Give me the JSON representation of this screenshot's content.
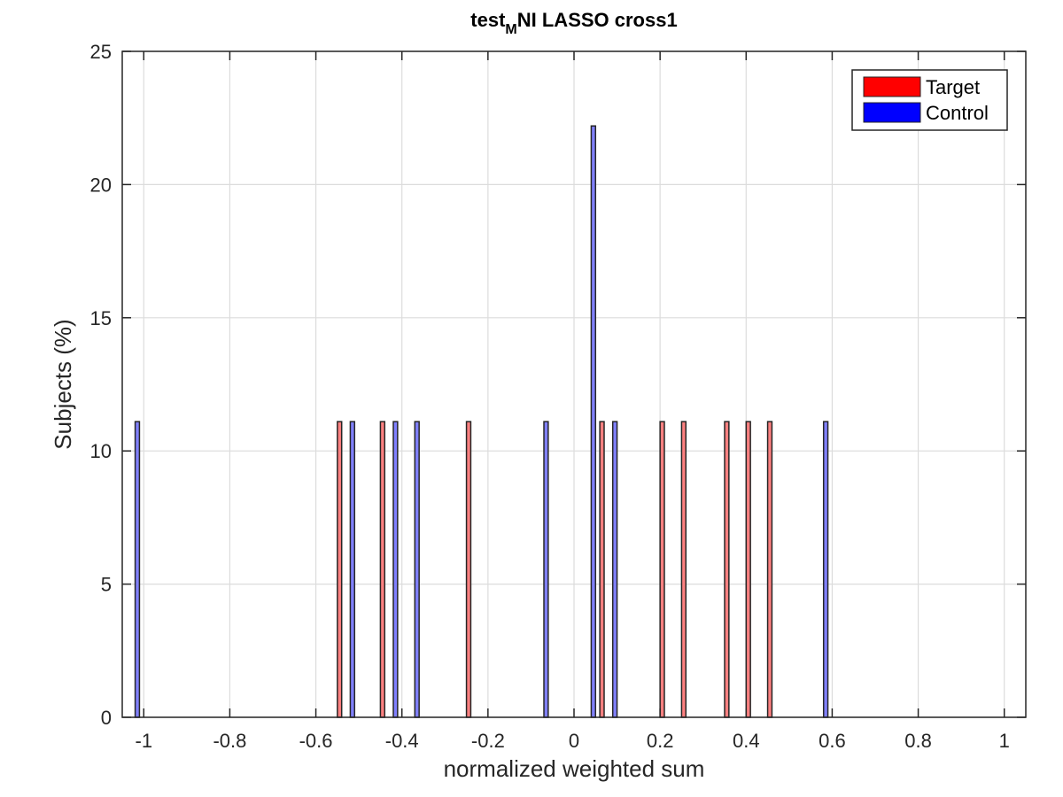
{
  "chart_data": {
    "type": "bar",
    "title": {
      "main": "test",
      "sub": "M",
      "rest": "NI LASSO cross1"
    },
    "xlabel": "normalized weighted sum",
    "ylabel": "Subjects (%)",
    "xlim": [
      -1.05,
      1.05
    ],
    "ylim": [
      0,
      25
    ],
    "xticks": [
      -1,
      -0.8,
      -0.6,
      -0.4,
      -0.2,
      0,
      0.2,
      0.4,
      0.6,
      0.8,
      1
    ],
    "xtick_labels": [
      "-1",
      "-0.8",
      "-0.6",
      "-0.4",
      "-0.2",
      "0",
      "0.2",
      "0.4",
      "0.6",
      "0.8",
      "1"
    ],
    "yticks": [
      0,
      5,
      10,
      15,
      20,
      25
    ],
    "ytick_labels": [
      "0",
      "5",
      "10",
      "15",
      "20",
      "25"
    ],
    "grid": true,
    "legend_position": "top-right",
    "series": [
      {
        "name": "Target",
        "legend_color": "#ff0000",
        "bar_color": "#ff8080",
        "x": [
          -0.545,
          -0.445,
          -0.245,
          0.065,
          0.205,
          0.255,
          0.355,
          0.405,
          0.455
        ],
        "values": [
          11.1,
          11.1,
          11.1,
          11.1,
          11.1,
          11.1,
          11.1,
          11.1,
          11.1
        ]
      },
      {
        "name": "Control",
        "legend_color": "#0000ff",
        "bar_color": "#8080ff",
        "x": [
          -1.015,
          -0.515,
          -0.415,
          -0.365,
          -0.065,
          0.045,
          0.095,
          0.585
        ],
        "values": [
          11.1,
          11.1,
          11.1,
          11.1,
          11.1,
          22.2,
          11.1,
          11.1
        ]
      }
    ]
  }
}
